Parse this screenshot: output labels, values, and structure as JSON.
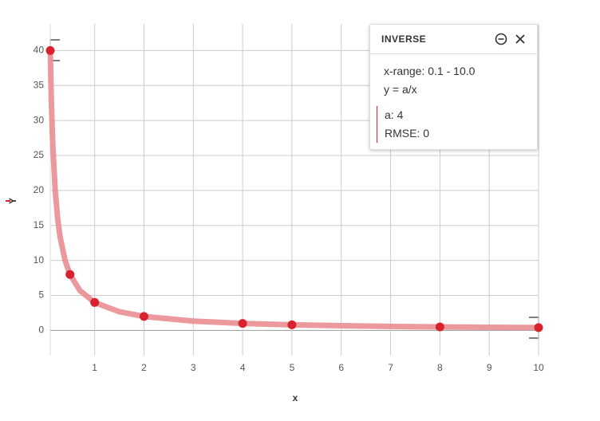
{
  "chart_data": {
    "type": "scatter",
    "x_label": "x",
    "y_label": "Y",
    "xlim": [
      0.1,
      10
    ],
    "xticks": [
      1,
      2,
      3,
      4,
      5,
      6,
      7,
      8,
      9,
      10
    ],
    "ylim": [
      -3.6,
      43.8
    ],
    "yticks": [
      0,
      5,
      10,
      15,
      20,
      25,
      30,
      35,
      40
    ],
    "grid": true,
    "series": [
      {
        "type": "line",
        "color": "#e98e92",
        "x": [
          0.1,
          0.12,
          0.15,
          0.2,
          0.25,
          0.3,
          0.4,
          0.5,
          0.7,
          1,
          1.5,
          2,
          3,
          4,
          5,
          6,
          7,
          8,
          9,
          10
        ],
        "values": [
          40,
          33.33,
          26.67,
          20,
          16,
          13.33,
          10,
          8,
          5.71,
          4,
          2.67,
          2,
          1.33,
          1,
          0.8,
          0.67,
          0.57,
          0.5,
          0.44,
          0.4
        ]
      },
      {
        "type": "scatter",
        "color": "#d8232f",
        "x": [
          0.1,
          0.5,
          1,
          2,
          4,
          5,
          8,
          10
        ],
        "values": [
          40,
          8,
          4,
          2,
          1,
          0.8,
          0.5,
          0.4
        ]
      }
    ]
  },
  "panel": {
    "title": "INVERSE",
    "range": "x-range: 0.1 - 10.0",
    "equation": "y = a/x",
    "params": [
      "a: 4",
      "RMSE: 0"
    ]
  }
}
